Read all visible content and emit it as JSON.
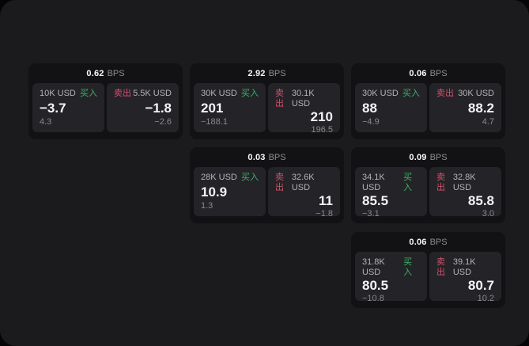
{
  "labels": {
    "buy": "买入",
    "sell": "卖出",
    "bps_unit": "BPS"
  },
  "colors": {
    "buy_accent": "#3db264",
    "sell_accent": "#d5506b",
    "canvas_bg": "#1b1b1d",
    "card_bg": "#121214",
    "tile_bg": "#242428"
  },
  "cards": [
    {
      "bps": "0.62",
      "buy": {
        "size": "10K USD",
        "value": "−3.7",
        "delta": "4.3"
      },
      "sell": {
        "size": "5.5K USD",
        "value": "−1.8",
        "delta": "−2.6"
      }
    },
    {
      "bps": "2.92",
      "buy": {
        "size": "30K USD",
        "value": "201",
        "delta": "−188.1"
      },
      "sell": {
        "size": "30.1K USD",
        "value": "210",
        "delta": "196.5"
      }
    },
    {
      "bps": "0.06",
      "buy": {
        "size": "30K USD",
        "value": "88",
        "delta": "−4.9"
      },
      "sell": {
        "size": "30K USD",
        "value": "88.2",
        "delta": "4.7"
      }
    },
    {
      "bps": "0.03",
      "buy": {
        "size": "28K USD",
        "value": "10.9",
        "delta": "1.3"
      },
      "sell": {
        "size": "32.6K USD",
        "value": "11",
        "delta": "−1.8"
      }
    },
    {
      "bps": "0.09",
      "buy": {
        "size": "34.1K USD",
        "value": "85.5",
        "delta": "−3.1"
      },
      "sell": {
        "size": "32.8K USD",
        "value": "85.8",
        "delta": "3.0"
      }
    },
    {
      "bps": "0.06",
      "buy": {
        "size": "31.8K USD",
        "value": "80.5",
        "delta": "−10.8"
      },
      "sell": {
        "size": "39.1K USD",
        "value": "80.7",
        "delta": "10.2"
      }
    }
  ]
}
